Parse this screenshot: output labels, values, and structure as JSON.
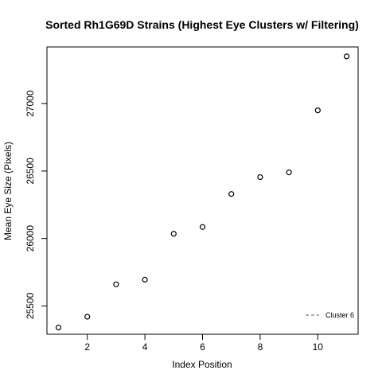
{
  "chart_data": {
    "type": "scatter",
    "title": "Sorted Rh1G69D Strains (Highest Eye Clusters w/ Filtering)",
    "xlabel": "Index Position",
    "ylabel": "Mean Eye Size (Pixels)",
    "xlim": [
      0.6,
      11.4
    ],
    "ylim": [
      25290,
      27420
    ],
    "x_ticks": [
      2,
      4,
      6,
      8,
      10
    ],
    "y_ticks": [
      25500,
      26000,
      26500,
      27000
    ],
    "grid": false,
    "legend": {
      "placement": "bottom-right",
      "entries": [
        "Cluster 6"
      ]
    },
    "series": [
      {
        "name": "Cluster 6",
        "x": [
          1,
          2,
          3,
          4,
          5,
          6,
          7,
          8,
          9,
          10,
          11
        ],
        "y": [
          25340,
          25420,
          25660,
          25695,
          26035,
          26085,
          26330,
          26455,
          26490,
          26950,
          27350
        ]
      }
    ]
  }
}
